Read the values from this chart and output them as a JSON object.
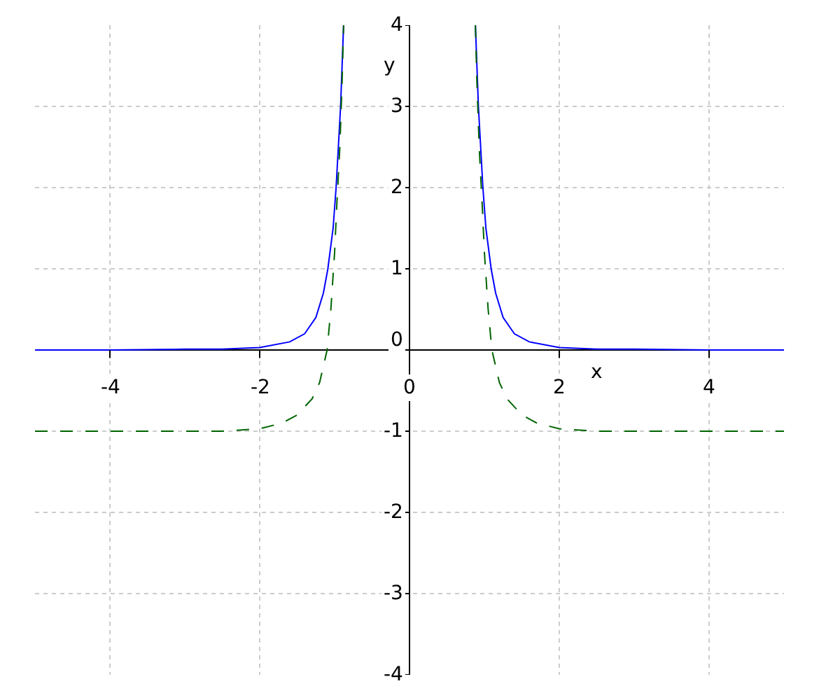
{
  "chart_data": {
    "type": "line",
    "xlabel": "x",
    "ylabel": "y",
    "xlim": [
      -5,
      5
    ],
    "ylim": [
      -4,
      4
    ],
    "xticks": [
      -4,
      -2,
      0,
      2,
      4
    ],
    "yticks": [
      -4,
      -3,
      -2,
      -1,
      0,
      1,
      2,
      3,
      4
    ],
    "grid": true,
    "series": [
      {
        "color": "#0000ff",
        "line_style": "solid",
        "x": [
          -5,
          -4,
          -3,
          -2.5,
          -2,
          -1.6,
          -1.4,
          -1.25,
          -1.15,
          -1.09,
          -1.02,
          -0.98,
          -0.95,
          -0.92,
          -0.9,
          -0.88,
          null,
          0.88,
          0.9,
          0.92,
          0.95,
          0.98,
          1.02,
          1.09,
          1.15,
          1.25,
          1.4,
          1.6,
          2,
          2.5,
          3,
          4,
          5
        ],
        "values": [
          0,
          0,
          0.01,
          0.01,
          0.03,
          0.1,
          0.2,
          0.4,
          0.7,
          1,
          1.5,
          2,
          2.5,
          3,
          3.5,
          4,
          null,
          4,
          3.5,
          3,
          2.5,
          2,
          1.5,
          1,
          0.7,
          0.4,
          0.2,
          0.1,
          0.03,
          0.01,
          0.01,
          0,
          0
        ]
      },
      {
        "color": "#006400",
        "line_style": "dashed",
        "x": [
          -5,
          -2.5,
          -2,
          -1.7,
          -1.5,
          -1.3,
          -1.2,
          -1.1,
          -1.05,
          -1.0,
          -0.97,
          -0.93,
          -0.9,
          -0.88,
          null,
          0.88,
          0.9,
          0.93,
          0.97,
          1.0,
          1.05,
          1.1,
          1.2,
          1.3,
          1.5,
          1.7,
          2,
          2.5,
          5
        ],
        "values": [
          -1,
          -1,
          -0.97,
          -0.9,
          -0.8,
          -0.6,
          -0.4,
          0,
          0.5,
          1.2,
          1.8,
          2.5,
          3.3,
          4,
          null,
          4,
          3.3,
          2.5,
          1.8,
          1.2,
          0.5,
          0,
          -0.4,
          -0.6,
          -0.8,
          -0.9,
          -0.97,
          -1,
          -1
        ]
      }
    ]
  }
}
